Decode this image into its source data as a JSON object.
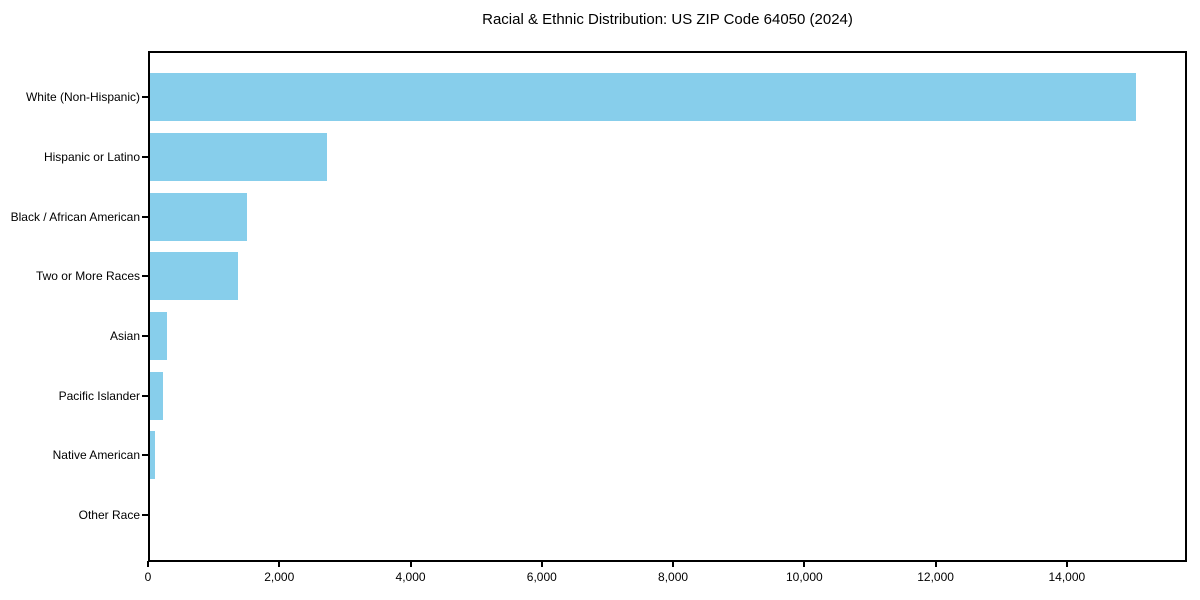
{
  "chart_data": {
    "type": "bar",
    "orientation": "horizontal",
    "title": "Racial & Ethnic Distribution: US ZIP Code 64050 (2024)",
    "categories": [
      "White (Non-Hispanic)",
      "Hispanic or Latino",
      "Black / African American",
      "Two or More Races",
      "Asian",
      "Pacific Islander",
      "Native American",
      "Other Race"
    ],
    "values": [
      15030,
      2700,
      1475,
      1340,
      260,
      200,
      80,
      0
    ],
    "xlabel": "",
    "ylabel": "",
    "xlim": [
      0,
      15800
    ],
    "x_ticks": [
      0,
      2000,
      4000,
      6000,
      8000,
      10000,
      12000,
      14000
    ],
    "x_tick_labels": [
      "0",
      "2,000",
      "4,000",
      "6,000",
      "8,000",
      "10,000",
      "12,000",
      "14,000"
    ],
    "bar_color": "#87CEEB",
    "grid": false,
    "legend": null,
    "background_color": "#ffffff",
    "frame_color": "#000000"
  }
}
